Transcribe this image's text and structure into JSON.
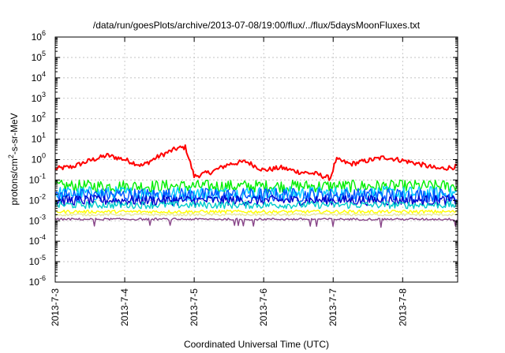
{
  "chart_data": {
    "type": "line",
    "title": "/data/run/goesPlots/archive/2013-07-08/19:00/flux/../flux/5daysMoonFluxes.txt",
    "xlabel": "Coordinated Universal Time (UTC)",
    "ylabel": "protons/cm2-s-sr-MeV",
    "ylabel_parts": {
      "pre": "protons/cm",
      "sup": "2",
      "post": "-s-sr-MeV"
    },
    "y_scale": "log",
    "ylim": [
      1e-06,
      1000000.0
    ],
    "y_ticks": [
      {
        "base": "10",
        "exp": "-6"
      },
      {
        "base": "10",
        "exp": "-5"
      },
      {
        "base": "10",
        "exp": "-4"
      },
      {
        "base": "10",
        "exp": "-3"
      },
      {
        "base": "10",
        "exp": "-2"
      },
      {
        "base": "10",
        "exp": "-1"
      },
      {
        "base": "10",
        "exp": "0"
      },
      {
        "base": "10",
        "exp": "1"
      },
      {
        "base": "10",
        "exp": "2"
      },
      {
        "base": "10",
        "exp": "3"
      },
      {
        "base": "10",
        "exp": "4"
      },
      {
        "base": "10",
        "exp": "5"
      },
      {
        "base": "10",
        "exp": "6"
      }
    ],
    "x_ticks": [
      "2013-7-3",
      "2013-7-4",
      "2013-7-5",
      "2013-7-6",
      "2013-7-7",
      "2013-7-8"
    ],
    "xlim": [
      "2013-07-03 00:00",
      "2013-07-08 19:00"
    ],
    "grid": true,
    "series": [
      {
        "color": "#ff0000",
        "x": [
          "2013-07-03 00:00",
          "2013-07-03 06:00",
          "2013-07-03 12:00",
          "2013-07-03 18:00",
          "2013-07-04 00:00",
          "2013-07-04 06:00",
          "2013-07-04 12:00",
          "2013-07-04 18:00",
          "2013-07-04 21:00",
          "2013-07-04 22:30",
          "2013-07-05 00:00",
          "2013-07-05 06:00",
          "2013-07-05 12:00",
          "2013-07-05 18:00",
          "2013-07-06 00:00",
          "2013-07-06 06:00",
          "2013-07-06 12:00",
          "2013-07-06 18:00",
          "2013-07-06 23:00",
          "2013-07-07 01:00",
          "2013-07-07 06:00",
          "2013-07-07 12:00",
          "2013-07-07 18:00",
          "2013-07-08 00:00",
          "2013-07-08 06:00",
          "2013-07-08 12:00",
          "2013-07-08 19:00"
        ],
        "values": [
          0.35,
          0.45,
          0.9,
          1.6,
          1.0,
          0.5,
          1.5,
          3.5,
          4.0,
          0.8,
          0.15,
          0.25,
          0.6,
          0.8,
          0.3,
          0.4,
          0.25,
          0.2,
          0.12,
          1.0,
          0.6,
          0.9,
          1.3,
          0.9,
          0.6,
          0.35,
          0.45
        ]
      },
      {
        "color": "#00ee00",
        "x": [
          "2013-07-03 00:00",
          "2013-07-08 19:00"
        ],
        "values": [
          0.05,
          0.05
        ]
      },
      {
        "color": "#00ccff",
        "x": [
          "2013-07-03 00:00",
          "2013-07-08 19:00"
        ],
        "values": [
          0.022,
          0.022
        ]
      },
      {
        "color": "#0055ff",
        "x": [
          "2013-07-03 00:00",
          "2013-07-08 19:00"
        ],
        "values": [
          0.018,
          0.018
        ]
      },
      {
        "color": "#0000cc",
        "x": [
          "2013-07-03 00:00",
          "2013-07-08 19:00"
        ],
        "values": [
          0.01,
          0.01
        ]
      },
      {
        "color": "#00cccc",
        "x": [
          "2013-07-03 00:00",
          "2013-07-08 19:00"
        ],
        "values": [
          0.006,
          0.006
        ]
      },
      {
        "color": "#ffff00",
        "x": [
          "2013-07-03 00:00",
          "2013-07-08 19:00"
        ],
        "values": [
          0.0028,
          0.0028
        ]
      },
      {
        "color": "#e8e8a0",
        "x": [
          "2013-07-03 00:00",
          "2013-07-08 19:00"
        ],
        "values": [
          0.002,
          0.002
        ]
      },
      {
        "color": "#884488",
        "x": [
          "2013-07-03 00:00",
          "2013-07-08 19:00"
        ],
        "values": [
          0.0012,
          0.0012
        ]
      }
    ]
  }
}
